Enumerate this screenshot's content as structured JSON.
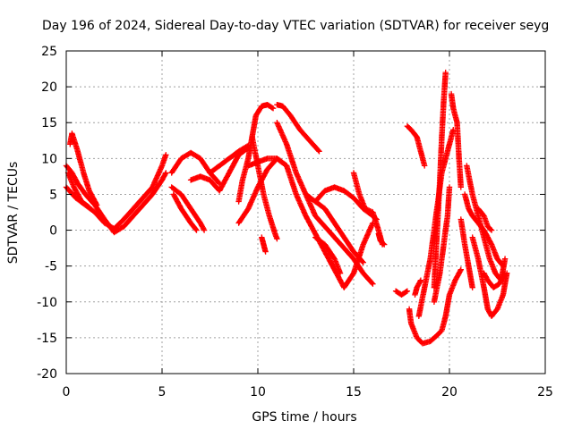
{
  "chart_data": {
    "type": "scatter",
    "title": "Day 196 of 2024, Sidereal Day-to-day VTEC variation (SDTVAR) for receiver seyg",
    "xlabel": "GPS time / hours",
    "ylabel": "SDTVAR / TECUs",
    "xlim": [
      0,
      25
    ],
    "ylim": [
      -20,
      25
    ],
    "xticks": [
      "0",
      "5",
      "10",
      "15",
      "20",
      "25"
    ],
    "yticks": [
      "-20",
      "-15",
      "-10",
      "-5",
      "0",
      "5",
      "10",
      "15",
      "20",
      "25"
    ],
    "grid": true,
    "marker": "+",
    "color": "#ff0000",
    "tracks": [
      [
        [
          0,
          9
        ],
        [
          0.3,
          8
        ],
        [
          0.6,
          6.5
        ],
        [
          1,
          5
        ],
        [
          1.5,
          3.5
        ],
        [
          2,
          1.5
        ],
        [
          2.5,
          -0.3
        ],
        [
          3,
          0.5
        ],
        [
          3.5,
          2
        ],
        [
          4,
          3.5
        ],
        [
          4.5,
          5
        ],
        [
          5,
          7
        ],
        [
          5.2,
          8
        ]
      ],
      [
        [
          0,
          6
        ],
        [
          0.5,
          4.5
        ],
        [
          1,
          3.5
        ],
        [
          1.5,
          2.5
        ],
        [
          2,
          1
        ],
        [
          2.5,
          0.2
        ],
        [
          3,
          1.5
        ],
        [
          3.5,
          3
        ],
        [
          4,
          4.5
        ],
        [
          4.5,
          6
        ],
        [
          5,
          9
        ],
        [
          5.2,
          10.5
        ]
      ],
      [
        [
          0.1,
          8
        ],
        [
          0.4,
          6
        ],
        [
          0.8,
          4
        ],
        [
          1.2,
          3.2
        ]
      ],
      [
        [
          0.2,
          12
        ],
        [
          0.3,
          13.5
        ],
        [
          0.6,
          11
        ],
        [
          0.9,
          8
        ],
        [
          1.2,
          5.5
        ],
        [
          1.6,
          3.5
        ]
      ],
      [
        [
          5.5,
          8
        ],
        [
          6,
          10
        ],
        [
          6.5,
          10.8
        ],
        [
          7,
          10
        ],
        [
          7.5,
          8
        ],
        [
          8,
          6.5
        ]
      ],
      [
        [
          5.5,
          6
        ],
        [
          6,
          5
        ],
        [
          6.5,
          3
        ],
        [
          7,
          1
        ],
        [
          7.2,
          0
        ]
      ],
      [
        [
          5.6,
          5
        ],
        [
          6,
          3
        ],
        [
          6.5,
          1
        ],
        [
          6.8,
          0
        ]
      ],
      [
        [
          6.5,
          7
        ],
        [
          7,
          7.5
        ],
        [
          7.5,
          7
        ],
        [
          8,
          5.5
        ],
        [
          8.5,
          8
        ],
        [
          9,
          10.5
        ],
        [
          9.5,
          11.5
        ]
      ],
      [
        [
          7.5,
          8
        ],
        [
          8,
          9
        ],
        [
          8.5,
          10
        ],
        [
          9,
          11
        ],
        [
          9.5,
          11.8
        ]
      ],
      [
        [
          9,
          4
        ],
        [
          9.2,
          7
        ],
        [
          9.5,
          10
        ],
        [
          9.7,
          13
        ],
        [
          9.9,
          16
        ],
        [
          10.2,
          17.3
        ],
        [
          10.5,
          17.5
        ],
        [
          10.8,
          17
        ]
      ],
      [
        [
          9.7,
          13
        ],
        [
          10,
          9
        ],
        [
          10.3,
          5
        ],
        [
          10.6,
          2
        ],
        [
          10.9,
          -0.5
        ],
        [
          11,
          -1.2
        ]
      ],
      [
        [
          9,
          1
        ],
        [
          9.5,
          3
        ],
        [
          10,
          6
        ],
        [
          10.5,
          8.5
        ],
        [
          11,
          10
        ],
        [
          11.5,
          9
        ],
        [
          12,
          5
        ],
        [
          12.5,
          2
        ],
        [
          13,
          -0.5
        ],
        [
          13.5,
          -3
        ],
        [
          14,
          -5.5
        ],
        [
          14.5,
          -8
        ],
        [
          15,
          -6
        ],
        [
          15.5,
          -2
        ],
        [
          16,
          1
        ]
      ],
      [
        [
          9.5,
          9
        ],
        [
          10,
          9.5
        ],
        [
          10.5,
          10
        ],
        [
          11,
          10
        ],
        [
          11.5,
          9
        ]
      ],
      [
        [
          11,
          17.5
        ],
        [
          11.3,
          17.3
        ],
        [
          11.7,
          16
        ],
        [
          12.2,
          14
        ],
        [
          12.7,
          12.5
        ],
        [
          13.2,
          11
        ]
      ],
      [
        [
          11,
          15
        ],
        [
          11.5,
          12
        ],
        [
          12,
          8
        ],
        [
          12.5,
          5
        ],
        [
          13,
          2
        ],
        [
          13.5,
          0.5
        ],
        [
          14,
          -1
        ],
        [
          14.5,
          -2.5
        ],
        [
          15,
          -4
        ],
        [
          15.5,
          -6
        ],
        [
          16,
          -7.5
        ]
      ],
      [
        [
          12.5,
          5
        ],
        [
          13,
          4
        ],
        [
          13.5,
          3
        ],
        [
          14,
          1
        ],
        [
          14.5,
          -1
        ],
        [
          15,
          -3
        ],
        [
          15.5,
          -4.5
        ]
      ],
      [
        [
          13,
          4
        ],
        [
          13.5,
          5.5
        ],
        [
          14,
          6
        ],
        [
          14.5,
          5.5
        ],
        [
          15,
          4.5
        ],
        [
          15.5,
          3
        ],
        [
          16,
          2
        ],
        [
          16.2,
          1.5
        ]
      ],
      [
        [
          15,
          8
        ],
        [
          15.3,
          5
        ],
        [
          15.6,
          3
        ],
        [
          16,
          2.5
        ],
        [
          16.3,
          0
        ],
        [
          16.5,
          -2
        ]
      ],
      [
        [
          13,
          -1
        ],
        [
          13.5,
          -2
        ],
        [
          14,
          -4
        ],
        [
          14.3,
          -6
        ]
      ],
      [
        [
          10.2,
          -1
        ],
        [
          10.3,
          -2
        ],
        [
          10.4,
          -3
        ]
      ],
      [
        [
          17.2,
          -8.5
        ],
        [
          17.5,
          -9
        ],
        [
          17.8,
          -8.5
        ]
      ],
      [
        [
          17.9,
          -11
        ],
        [
          18,
          -13
        ],
        [
          18.3,
          -15
        ],
        [
          18.6,
          -15.8
        ],
        [
          19,
          -15.5
        ],
        [
          19.3,
          -14.8
        ],
        [
          19.6,
          -14
        ],
        [
          19.8,
          -12
        ],
        [
          20,
          -9
        ],
        [
          20.3,
          -7
        ],
        [
          20.6,
          -5.5
        ]
      ],
      [
        [
          18.4,
          -12
        ],
        [
          18.7,
          -8
        ],
        [
          19,
          -4
        ],
        [
          19.2,
          0
        ],
        [
          19.4,
          4
        ],
        [
          19.6,
          8
        ],
        [
          19.8,
          10
        ],
        [
          20,
          12
        ],
        [
          20.2,
          14
        ]
      ],
      [
        [
          19.2,
          -8
        ],
        [
          19.3,
          -3
        ],
        [
          19.4,
          2
        ],
        [
          19.5,
          7
        ],
        [
          19.6,
          13
        ],
        [
          19.7,
          18
        ],
        [
          19.8,
          22
        ]
      ],
      [
        [
          19.2,
          -10
        ],
        [
          19.5,
          -6
        ],
        [
          19.7,
          -2
        ],
        [
          19.9,
          2
        ],
        [
          20,
          6
        ]
      ],
      [
        [
          17.8,
          14.5
        ],
        [
          18,
          14
        ],
        [
          18.3,
          13
        ],
        [
          18.5,
          11
        ],
        [
          18.7,
          9
        ]
      ],
      [
        [
          20.1,
          19
        ],
        [
          20.2,
          17
        ],
        [
          20.4,
          15
        ],
        [
          20.5,
          10
        ],
        [
          20.6,
          6
        ]
      ],
      [
        [
          20.6,
          1.5
        ],
        [
          20.8,
          -2
        ],
        [
          21,
          -5
        ],
        [
          21.2,
          -8
        ]
      ],
      [
        [
          20.8,
          5
        ],
        [
          21,
          3
        ],
        [
          21.2,
          2
        ],
        [
          21.5,
          1
        ],
        [
          21.8,
          0
        ],
        [
          22,
          -1
        ],
        [
          22.2,
          -2
        ],
        [
          22.5,
          -4
        ],
        [
          22.8,
          -5
        ]
      ],
      [
        [
          20.9,
          9
        ],
        [
          21.2,
          5
        ],
        [
          21.5,
          2
        ],
        [
          21.8,
          -1
        ],
        [
          22.1,
          -4
        ],
        [
          22.4,
          -6
        ],
        [
          22.7,
          -7
        ],
        [
          22.9,
          -4
        ]
      ],
      [
        [
          21.2,
          -1
        ],
        [
          21.5,
          -4
        ],
        [
          21.8,
          -8
        ],
        [
          22,
          -11
        ],
        [
          22.2,
          -12
        ],
        [
          22.5,
          -11
        ],
        [
          22.8,
          -9
        ],
        [
          23,
          -6
        ]
      ],
      [
        [
          21.5,
          3
        ],
        [
          21.8,
          2
        ],
        [
          22,
          0.5
        ],
        [
          22.2,
          0
        ]
      ],
      [
        [
          21.8,
          -6
        ],
        [
          22,
          -7
        ],
        [
          22.3,
          -8
        ],
        [
          22.6,
          -7.5
        ],
        [
          22.9,
          -6
        ]
      ],
      [
        [
          16.3,
          -0.5
        ],
        [
          16.4,
          -1.5
        ],
        [
          16.6,
          -2
        ]
      ],
      [
        [
          18.2,
          -9
        ],
        [
          18.3,
          -8
        ],
        [
          18.5,
          -7
        ]
      ]
    ]
  }
}
